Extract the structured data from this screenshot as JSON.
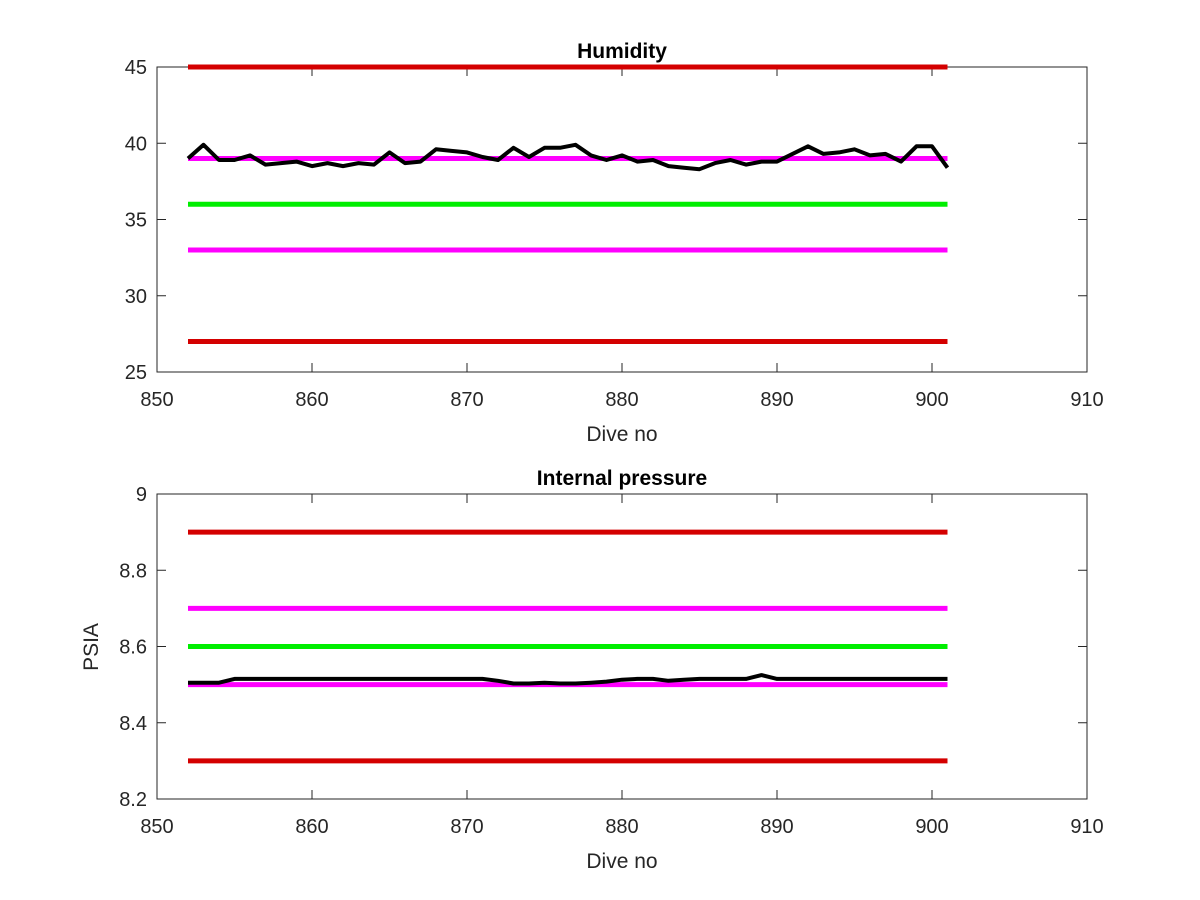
{
  "chart_data": [
    {
      "type": "line",
      "title": "Humidity",
      "xlabel": "Dive no",
      "ylabel": "",
      "xlim": [
        850,
        910
      ],
      "ylim": [
        25,
        45
      ],
      "xticks": [
        850,
        860,
        870,
        880,
        890,
        900,
        910
      ],
      "yticks": [
        25,
        30,
        35,
        40,
        45
      ],
      "xtick_labels": [
        "850",
        "860",
        "870",
        "880",
        "890",
        "900",
        "910"
      ],
      "ytick_labels": [
        "25",
        "30",
        "35",
        "40",
        "45"
      ],
      "grid": false,
      "reference_lines": [
        {
          "y": 45,
          "x": [
            852,
            901
          ],
          "color": "#d40000"
        },
        {
          "y": 39,
          "x": [
            852,
            901
          ],
          "color": "#ff00ff"
        },
        {
          "y": 36,
          "x": [
            852,
            901
          ],
          "color": "#00ee00"
        },
        {
          "y": 33,
          "x": [
            852,
            901
          ],
          "color": "#ff00ff"
        },
        {
          "y": 27,
          "x": [
            852,
            901
          ],
          "color": "#d40000"
        }
      ],
      "series": [
        {
          "color": "#000000",
          "x": [
            852,
            853,
            854,
            855,
            856,
            857,
            858,
            859,
            860,
            861,
            862,
            863,
            864,
            865,
            866,
            867,
            868,
            869,
            870,
            871,
            872,
            873,
            874,
            875,
            876,
            877,
            878,
            879,
            880,
            881,
            882,
            883,
            884,
            885,
            886,
            887,
            888,
            889,
            890,
            891,
            892,
            893,
            894,
            895,
            896,
            897,
            898,
            899,
            900,
            901
          ],
          "y": [
            39.0,
            39.9,
            38.9,
            38.9,
            39.2,
            38.6,
            38.7,
            38.8,
            38.5,
            38.7,
            38.5,
            38.7,
            38.6,
            39.4,
            38.7,
            38.8,
            39.6,
            39.5,
            39.4,
            39.1,
            38.9,
            39.7,
            39.1,
            39.7,
            39.7,
            39.9,
            39.2,
            38.9,
            39.2,
            38.8,
            38.9,
            38.5,
            38.4,
            38.3,
            38.7,
            38.9,
            38.6,
            38.8,
            38.8,
            39.3,
            39.8,
            39.3,
            39.4,
            39.6,
            39.2,
            39.3,
            38.8,
            39.8,
            39.8,
            38.4
          ]
        }
      ]
    },
    {
      "type": "line",
      "title": "Internal pressure",
      "xlabel": "Dive no",
      "ylabel": "PSIA",
      "xlim": [
        850,
        910
      ],
      "ylim": [
        8.2,
        9
      ],
      "xticks": [
        850,
        860,
        870,
        880,
        890,
        900,
        910
      ],
      "yticks": [
        8.2,
        8.4,
        8.6,
        8.8,
        9
      ],
      "xtick_labels": [
        "850",
        "860",
        "870",
        "880",
        "890",
        "900",
        "910"
      ],
      "ytick_labels": [
        "8.2",
        "8.4",
        "8.6",
        "8.8",
        "9"
      ],
      "grid": false,
      "reference_lines": [
        {
          "y": 8.9,
          "x": [
            852,
            901
          ],
          "color": "#d40000"
        },
        {
          "y": 8.7,
          "x": [
            852,
            901
          ],
          "color": "#ff00ff"
        },
        {
          "y": 8.6,
          "x": [
            852,
            901
          ],
          "color": "#00ee00"
        },
        {
          "y": 8.5,
          "x": [
            852,
            901
          ],
          "color": "#ff00ff"
        },
        {
          "y": 8.3,
          "x": [
            852,
            901
          ],
          "color": "#d40000"
        }
      ],
      "series": [
        {
          "color": "#000000",
          "x": [
            852,
            853,
            854,
            855,
            856,
            857,
            858,
            859,
            860,
            861,
            862,
            863,
            864,
            865,
            866,
            867,
            868,
            869,
            870,
            871,
            872,
            873,
            874,
            875,
            876,
            877,
            878,
            879,
            880,
            881,
            882,
            883,
            884,
            885,
            886,
            887,
            888,
            889,
            890,
            891,
            892,
            893,
            894,
            895,
            896,
            897,
            898,
            899,
            900,
            901
          ],
          "y": [
            8.505,
            8.505,
            8.505,
            8.515,
            8.515,
            8.515,
            8.515,
            8.515,
            8.515,
            8.515,
            8.515,
            8.515,
            8.515,
            8.515,
            8.515,
            8.515,
            8.515,
            8.515,
            8.515,
            8.515,
            8.51,
            8.503,
            8.503,
            8.505,
            8.503,
            8.503,
            8.505,
            8.508,
            8.513,
            8.515,
            8.515,
            8.51,
            8.513,
            8.515,
            8.515,
            8.515,
            8.515,
            8.525,
            8.515,
            8.515,
            8.515,
            8.515,
            8.515,
            8.515,
            8.515,
            8.515,
            8.515,
            8.515,
            8.515,
            8.515
          ]
        }
      ]
    }
  ]
}
